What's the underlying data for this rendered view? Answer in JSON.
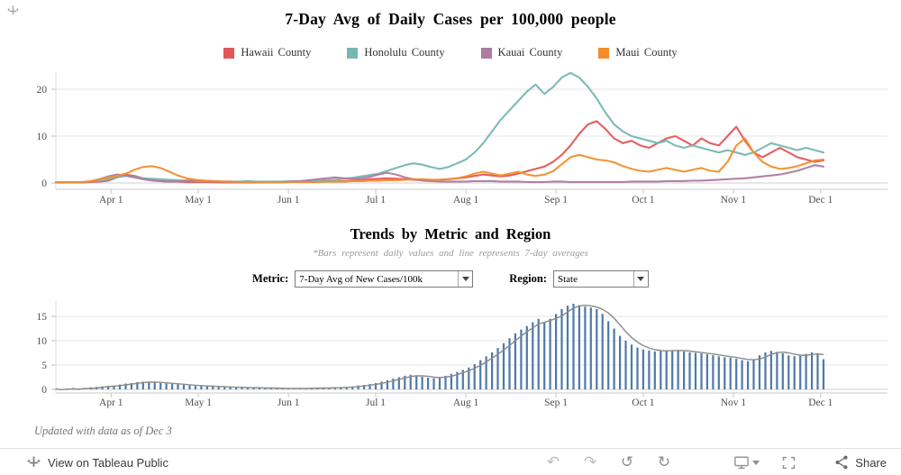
{
  "top_chart": {
    "type": "line",
    "title": "7-Day Avg of Daily Cases per 100,000 people",
    "legend": [
      {
        "label": "Hawaii County",
        "color": "#e15759"
      },
      {
        "label": "Honolulu County",
        "color": "#76b7b2"
      },
      {
        "label": "Kauai County",
        "color": "#b07aa1"
      },
      {
        "label": "Maui County",
        "color": "#f28e2b"
      }
    ],
    "y_ticks": [
      0,
      10,
      20
    ],
    "x_ticks": [
      {
        "day": 19,
        "label": "Apr 1"
      },
      {
        "day": 49,
        "label": "May 1"
      },
      {
        "day": 80,
        "label": "Jun 1"
      },
      {
        "day": 110,
        "label": "Jul 1"
      },
      {
        "day": 141,
        "label": "Aug 1"
      },
      {
        "day": 172,
        "label": "Sep 1"
      },
      {
        "day": 202,
        "label": "Oct 1"
      },
      {
        "day": 233,
        "label": "Nov 1"
      },
      {
        "day": 263,
        "label": "Dec 1"
      }
    ],
    "x_span_days": 286,
    "step_days": 3,
    "series": [
      {
        "name": "Hawaii County",
        "color": "#e15759",
        "values": [
          0.1,
          0.1,
          0.1,
          0.1,
          0.2,
          0.3,
          0.5,
          1.2,
          1.8,
          1.5,
          1.0,
          0.6,
          0.4,
          0.3,
          0.3,
          0.2,
          0.2,
          0.2,
          0.2,
          0.1,
          0.1,
          0.1,
          0.1,
          0.1,
          0.1,
          0.1,
          0.2,
          0.2,
          0.2,
          0.2,
          0.3,
          0.3,
          0.3,
          0.4,
          0.5,
          0.6,
          0.8,
          0.9,
          1.0,
          0.9,
          0.8,
          0.7,
          0.6,
          0.6,
          0.7,
          0.8,
          1.0,
          1.2,
          1.5,
          1.8,
          1.6,
          1.4,
          1.6,
          2.0,
          2.5,
          3.0,
          3.5,
          4.5,
          6.0,
          8.0,
          10.5,
          12.5,
          13.2,
          11.5,
          9.5,
          8.5,
          9.0,
          8.0,
          7.5,
          8.5,
          9.5,
          10.0,
          9.0,
          8.0,
          9.5,
          8.5,
          8.0,
          10.0,
          12.0,
          9.0,
          6.5,
          5.5,
          6.5,
          7.5,
          6.5,
          5.5,
          5.0,
          4.5,
          4.8
        ]
      },
      {
        "name": "Honolulu County",
        "color": "#76b7b2",
        "values": [
          0.2,
          0.2,
          0.2,
          0.2,
          0.3,
          0.5,
          0.8,
          1.2,
          1.5,
          1.3,
          1.0,
          0.9,
          0.8,
          0.7,
          0.6,
          0.5,
          0.5,
          0.4,
          0.4,
          0.3,
          0.3,
          0.3,
          0.4,
          0.3,
          0.3,
          0.3,
          0.3,
          0.4,
          0.4,
          0.5,
          0.5,
          0.6,
          0.7,
          0.9,
          1.1,
          1.4,
          1.7,
          2.0,
          2.6,
          3.2,
          3.8,
          4.2,
          3.9,
          3.4,
          3.0,
          3.4,
          4.2,
          5.0,
          6.5,
          8.5,
          11.0,
          13.5,
          15.5,
          17.5,
          19.5,
          21.0,
          19.0,
          20.5,
          22.5,
          23.5,
          22.5,
          20.5,
          18.0,
          15.0,
          12.5,
          11.0,
          10.0,
          9.5,
          9.0,
          8.5,
          9.0,
          8.0,
          7.5,
          8.0,
          7.5,
          7.0,
          6.5,
          7.0,
          6.5,
          6.0,
          6.5,
          7.5,
          8.5,
          8.0,
          7.5,
          7.0,
          7.5,
          7.0,
          6.5
        ]
      },
      {
        "name": "Kauai County",
        "color": "#b07aa1",
        "values": [
          0.1,
          0.1,
          0.1,
          0.1,
          0.3,
          0.8,
          1.4,
          1.8,
          1.6,
          1.2,
          0.8,
          0.5,
          0.4,
          0.3,
          0.3,
          0.5,
          0.6,
          0.5,
          0.4,
          0.3,
          0.2,
          0.2,
          0.2,
          0.1,
          0.1,
          0.1,
          0.2,
          0.3,
          0.4,
          0.6,
          0.8,
          1.0,
          1.2,
          1.0,
          0.9,
          1.0,
          1.3,
          1.8,
          2.2,
          1.8,
          1.2,
          0.8,
          0.5,
          0.4,
          0.3,
          0.3,
          0.3,
          0.3,
          0.4,
          0.4,
          0.4,
          0.3,
          0.3,
          0.3,
          0.2,
          0.2,
          0.2,
          0.3,
          0.3,
          0.2,
          0.2,
          0.2,
          0.2,
          0.2,
          0.2,
          0.2,
          0.3,
          0.3,
          0.3,
          0.3,
          0.4,
          0.4,
          0.4,
          0.5,
          0.5,
          0.6,
          0.7,
          0.8,
          0.9,
          1.0,
          1.2,
          1.4,
          1.6,
          1.8,
          2.2,
          2.6,
          3.2,
          3.8,
          3.5
        ]
      },
      {
        "name": "Maui County",
        "color": "#f28e2b",
        "values": [
          0.2,
          0.2,
          0.2,
          0.2,
          0.4,
          0.8,
          1.2,
          1.5,
          2.0,
          2.8,
          3.4,
          3.6,
          3.2,
          2.4,
          1.6,
          1.0,
          0.7,
          0.5,
          0.4,
          0.3,
          0.3,
          0.2,
          0.2,
          0.2,
          0.1,
          0.1,
          0.1,
          0.2,
          0.2,
          0.2,
          0.2,
          0.3,
          0.3,
          0.3,
          0.4,
          0.4,
          0.5,
          0.5,
          0.6,
          0.6,
          0.7,
          0.8,
          0.8,
          0.7,
          0.7,
          0.8,
          1.0,
          1.4,
          2.0,
          2.4,
          2.0,
          1.6,
          2.0,
          2.4,
          1.8,
          1.5,
          1.8,
          2.5,
          4.0,
          5.5,
          6.0,
          5.5,
          5.0,
          4.8,
          4.4,
          3.6,
          3.0,
          2.6,
          2.4,
          2.8,
          3.2,
          2.8,
          2.4,
          2.8,
          3.2,
          2.6,
          2.4,
          4.5,
          8.0,
          9.5,
          6.5,
          4.5,
          3.5,
          3.0,
          3.2,
          3.6,
          4.2,
          4.8,
          5.0
        ]
      }
    ]
  },
  "bottom_chart": {
    "type": "bar",
    "title": "Trends by Metric and Region",
    "subtitle": "*Bars represent daily values and line represents 7-day averages",
    "metric_label": "Metric:",
    "metric_value": "7-Day Avg of New Cases/100k",
    "region_label": "Region:",
    "region_value": "State",
    "y_ticks": [
      0,
      5,
      10,
      15
    ],
    "x_ticks": [
      {
        "day": 19,
        "label": "Apr 1"
      },
      {
        "day": 49,
        "label": "May 1"
      },
      {
        "day": 80,
        "label": "Jun 1"
      },
      {
        "day": 110,
        "label": "Jul 1"
      },
      {
        "day": 141,
        "label": "Aug 1"
      },
      {
        "day": 172,
        "label": "Sep 1"
      },
      {
        "day": 202,
        "label": "Oct 1"
      },
      {
        "day": 233,
        "label": "Nov 1"
      },
      {
        "day": 263,
        "label": "Dec 1"
      }
    ],
    "x_span_days": 286,
    "step_days": 2,
    "bar_color": "#4e79a7",
    "line_color": "#8a8a8a",
    "bars": [
      0.1,
      -0.2,
      0.2,
      0.3,
      -0.1,
      0.3,
      0.4,
      0.5,
      0.6,
      0.7,
      0.8,
      1.0,
      1.2,
      1.3,
      1.5,
      1.6,
      1.5,
      1.4,
      1.3,
      1.2,
      1.1,
      1.0,
      0.9,
      0.8,
      0.7,
      0.7,
      0.6,
      0.6,
      0.5,
      0.5,
      0.4,
      0.4,
      0.4,
      0.3,
      0.3,
      0.3,
      0.3,
      0.2,
      0.2,
      0.2,
      0.2,
      0.2,
      0.2,
      0.2,
      0.3,
      0.3,
      0.3,
      0.3,
      0.4,
      0.4,
      0.5,
      0.6,
      0.8,
      0.9,
      1.1,
      1.3,
      1.6,
      1.9,
      2.2,
      2.5,
      2.8,
      3.0,
      2.8,
      2.6,
      2.4,
      2.3,
      2.5,
      2.8,
      3.2,
      3.6,
      4.0,
      4.5,
      5.2,
      6.0,
      6.8,
      7.6,
      8.5,
      9.5,
      10.5,
      11.5,
      12.3,
      13.0,
      13.8,
      14.5,
      13.8,
      14.5,
      15.5,
      16.5,
      17.2,
      17.6,
      17.3,
      17.0,
      16.8,
      16.5,
      15.5,
      14.0,
      12.5,
      11.0,
      10.0,
      9.2,
      8.6,
      8.2,
      8.0,
      7.8,
      7.9,
      8.0,
      8.1,
      8.0,
      7.8,
      7.6,
      7.5,
      7.4,
      7.2,
      7.0,
      6.8,
      6.6,
      6.5,
      6.3,
      6.0,
      5.8,
      6.2,
      7.0,
      7.6,
      7.9,
      7.7,
      7.4,
      7.0,
      6.8,
      6.9,
      7.3,
      7.6,
      7.4,
      6.2
    ]
  },
  "caption": "Updated with data as of Dec 3",
  "footer": {
    "view_label": "View on Tableau Public",
    "share_label": "Share",
    "nav_icons": [
      {
        "name": "undo-icon",
        "glyph": "↶"
      },
      {
        "name": "redo-icon",
        "glyph": "↷"
      },
      {
        "name": "replay-icon",
        "glyph": "↺"
      },
      {
        "name": "refresh-icon",
        "glyph": "↻"
      }
    ]
  }
}
